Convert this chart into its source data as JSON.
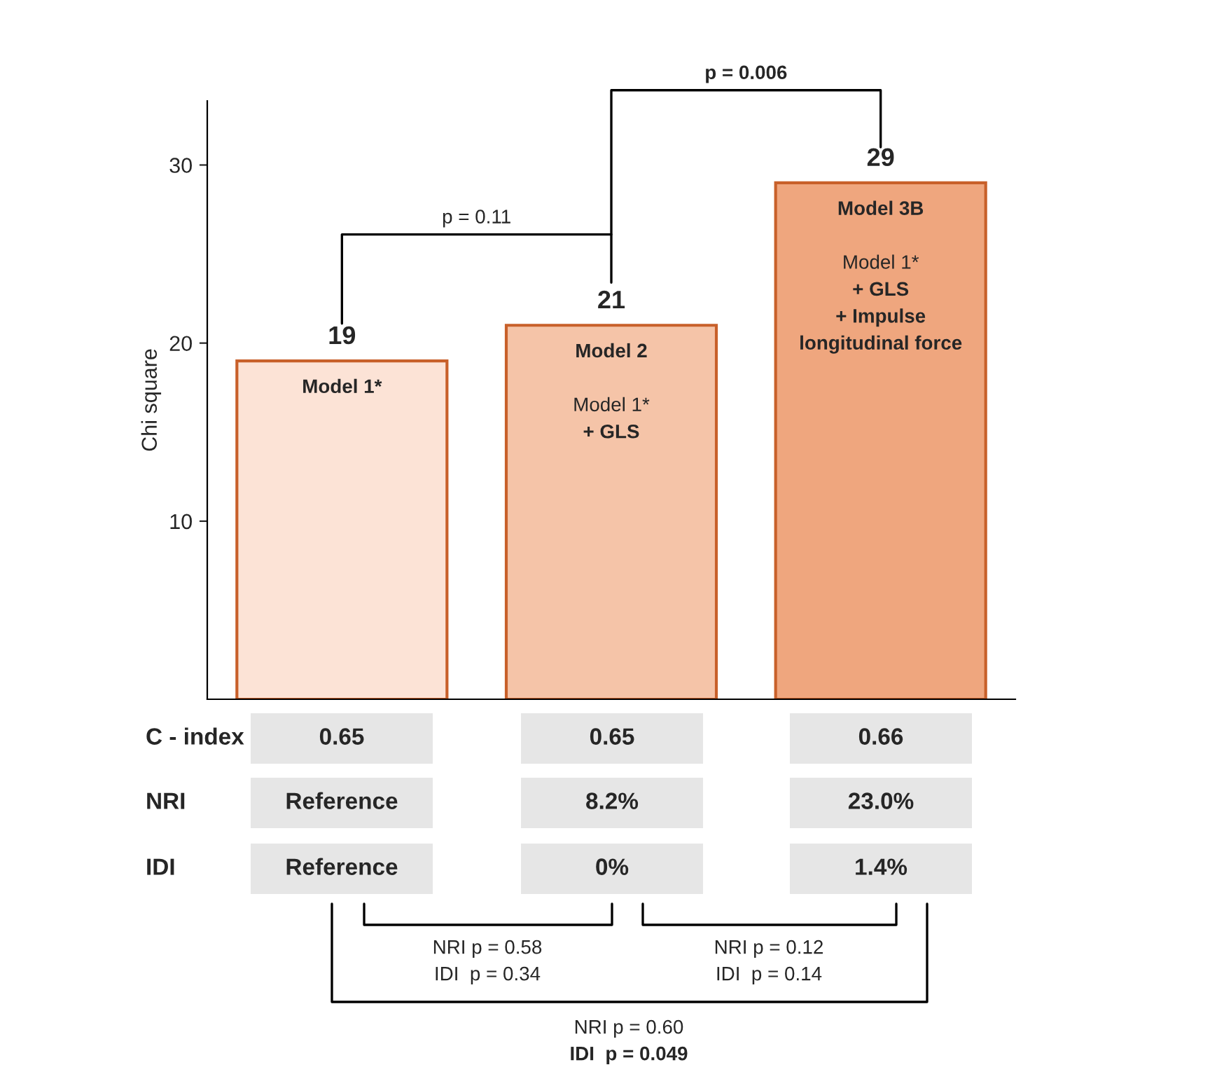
{
  "chart_data": {
    "type": "bar",
    "ylabel": "Chi square",
    "categories": [
      null,
      null,
      null
    ],
    "values": [
      19,
      21,
      29
    ],
    "colors": [
      "#fce3d6",
      "#f5c4a8",
      "#efa67e"
    ],
    "data_labels": true,
    "ylim": [
      0,
      33.6
    ],
    "yticks": [
      10,
      20,
      30
    ],
    "grid": false,
    "legend": false,
    "annotations": [
      "Model 1*",
      "Model 2\n\nModel 1*\n+ GLS",
      "Model 3B\n\nModel 1*\n+ GLS\n+ Impulse\nlongitudinal force",
      "p = 0.11",
      "p = 0.006",
      "C - index",
      "0.65",
      "0.65",
      "0.66",
      "NRI",
      "Reference",
      "8.2%",
      "23.0%",
      "IDI",
      "Reference",
      "0%",
      "1.4%",
      "NRI p = 0.58\nIDI  p = 0.34",
      "NRI p = 0.12\nIDI  p = 0.14",
      "NRI p = 0.60\nIDI  p = 0.049"
    ]
  }
}
